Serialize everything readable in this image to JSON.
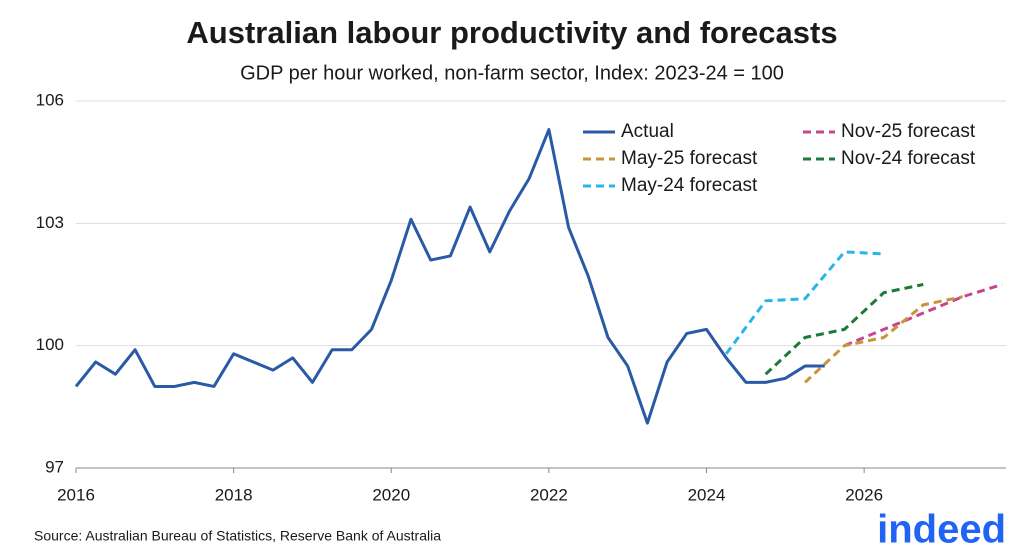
{
  "chart_data": {
    "type": "line",
    "title": "Australian labour productivity and forecasts",
    "subtitle": "GDP per hour worked, non-farm sector, Index: 2023-24 = 100",
    "source": "Source: Australian Bureau of Statistics, Reserve Bank of Australia",
    "logo": "indeed",
    "xlim": [
      2016,
      2027.8
    ],
    "xticks": [
      2016,
      2018,
      2020,
      2022,
      2024,
      2026
    ],
    "ylim": [
      97,
      106
    ],
    "yticks": [
      97,
      100,
      103,
      106
    ],
    "grid": true,
    "series": [
      {
        "name": "Actual",
        "color": "#2a5aa6",
        "dash": false,
        "x": [
          2016,
          2016.25,
          2016.5,
          2016.75,
          2017,
          2017.25,
          2017.5,
          2017.75,
          2018,
          2018.25,
          2018.5,
          2018.75,
          2019,
          2019.25,
          2019.5,
          2019.75,
          2020,
          2020.25,
          2020.5,
          2020.75,
          2021,
          2021.25,
          2021.5,
          2021.75,
          2022,
          2022.25,
          2022.5,
          2022.75,
          2023,
          2023.25,
          2023.5,
          2023.75,
          2024,
          2024.25,
          2024.5,
          2024.75,
          2025,
          2025.25,
          2025.5
        ],
        "values": [
          99.0,
          99.6,
          99.3,
          99.9,
          99.0,
          99.0,
          99.1,
          99.0,
          99.8,
          99.6,
          99.4,
          99.7,
          99.1,
          99.9,
          99.9,
          100.4,
          101.6,
          103.1,
          102.1,
          102.2,
          103.4,
          102.3,
          103.3,
          104.1,
          105.3,
          102.9,
          101.7,
          100.2,
          99.5,
          98.1,
          99.6,
          100.3,
          100.4,
          99.7,
          99.1,
          99.1,
          99.2,
          99.5,
          99.5
        ]
      },
      {
        "name": "May-25 forecast",
        "color": "#c8943a",
        "dash": true,
        "x": [
          2025.25,
          2025.75,
          2026.25,
          2026.75,
          2027.25
        ],
        "values": [
          99.1,
          100.0,
          100.2,
          101.0,
          101.2
        ]
      },
      {
        "name": "May-24 forecast",
        "color": "#2ab5e8",
        "dash": true,
        "x": [
          2024.25,
          2024.75,
          2025.25,
          2025.75,
          2026.25
        ],
        "values": [
          99.8,
          101.1,
          101.15,
          102.3,
          102.25
        ]
      },
      {
        "name": "Nov-25 forecast",
        "color": "#c7458e",
        "dash": true,
        "x": [
          2025.75,
          2026.25,
          2026.75,
          2027.25,
          2027.75
        ],
        "values": [
          100.0,
          100.4,
          100.8,
          101.2,
          101.5
        ]
      },
      {
        "name": "Nov-24 forecast",
        "color": "#1e7a3a",
        "dash": true,
        "x": [
          2024.75,
          2025.25,
          2025.75,
          2026.25,
          2026.75
        ],
        "values": [
          99.3,
          100.2,
          100.4,
          101.3,
          101.5
        ]
      }
    ]
  }
}
